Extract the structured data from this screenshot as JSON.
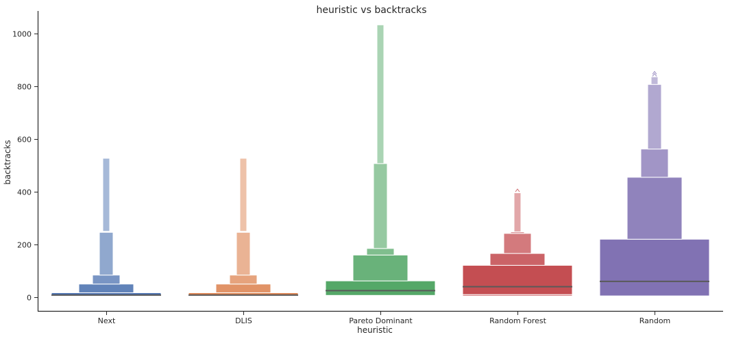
{
  "chart_data": {
    "type": "boxen",
    "title": "heuristic vs backtracks",
    "xlabel": "heuristic",
    "ylabel": "backtracks",
    "ylim": [
      -50,
      1090
    ],
    "yticks": [
      0,
      200,
      400,
      600,
      800,
      1000
    ],
    "grid": false,
    "categories": [
      "Next",
      "DLIS",
      "Pareto Dominant",
      "Random Forest",
      "Random"
    ],
    "colors": [
      "#4c72b0",
      "#dd8452",
      "#55a868",
      "#c44e52",
      "#8172b3"
    ],
    "median_color": "#5a5a5a",
    "series": [
      {
        "name": "Next",
        "median": 8,
        "boxes": [
          {
            "low": 5,
            "high": 17
          },
          {
            "low": 17,
            "high": 50
          },
          {
            "low": 50,
            "high": 84
          },
          {
            "low": 84,
            "high": 246
          },
          {
            "low": 250,
            "high": 527
          }
        ],
        "outliers": []
      },
      {
        "name": "DLIS",
        "median": 8,
        "boxes": [
          {
            "low": 5,
            "high": 17
          },
          {
            "low": 17,
            "high": 50
          },
          {
            "low": 50,
            "high": 84
          },
          {
            "low": 84,
            "high": 246
          },
          {
            "low": 250,
            "high": 527
          }
        ],
        "outliers": []
      },
      {
        "name": "Pareto Dominant",
        "median": 25,
        "boxes": [
          {
            "low": 7,
            "high": 62
          },
          {
            "low": 62,
            "high": 160
          },
          {
            "low": 160,
            "high": 185
          },
          {
            "low": 185,
            "high": 507
          },
          {
            "low": 507,
            "high": 1033
          }
        ],
        "outliers": []
      },
      {
        "name": "Random Forest",
        "median": 40,
        "boxes": [
          {
            "low": 10,
            "high": 121
          },
          {
            "low": 121,
            "high": 166
          },
          {
            "low": 166,
            "high": 242
          },
          {
            "low": 242,
            "high": 248
          },
          {
            "low": 248,
            "high": 396
          }
        ],
        "low_box": {
          "low": 4,
          "high": 10
        },
        "outliers": [
          405
        ]
      },
      {
        "name": "Random",
        "median": 60,
        "boxes": [
          {
            "low": 5,
            "high": 220
          },
          {
            "low": 220,
            "high": 455
          },
          {
            "low": 455,
            "high": 562
          },
          {
            "low": 562,
            "high": 807
          },
          {
            "low": 807,
            "high": 836
          }
        ],
        "outliers": [
          843,
          851
        ]
      }
    ]
  }
}
